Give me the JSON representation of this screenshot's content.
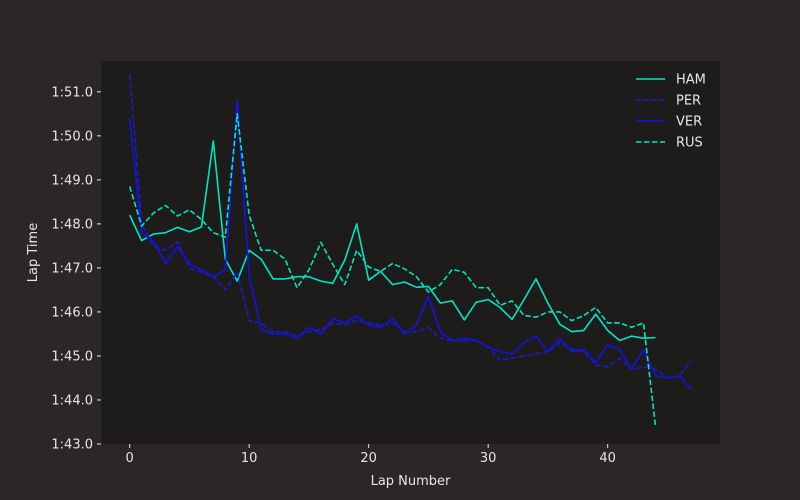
{
  "chart_data": {
    "type": "line",
    "title": "",
    "xlabel": "Lap Number",
    "ylabel": "Lap Time",
    "xlim": [
      -2.4,
      49.4
    ],
    "ylim": [
      103.0,
      111.7
    ],
    "x_ticks": [
      0,
      10,
      20,
      30,
      40
    ],
    "y_ticks": [
      {
        "value": 103,
        "label": "1:43.0"
      },
      {
        "value": 104,
        "label": "1:44.0"
      },
      {
        "value": 105,
        "label": "1:45.0"
      },
      {
        "value": 106,
        "label": "1:46.0"
      },
      {
        "value": 107,
        "label": "1:47.0"
      },
      {
        "value": 108,
        "label": "1:48.0"
      },
      {
        "value": 109,
        "label": "1:49.0"
      },
      {
        "value": 110,
        "label": "1:50.0"
      },
      {
        "value": 111,
        "label": "1:51.0"
      }
    ],
    "grid": false,
    "legend_position": "top-right",
    "colors": {
      "figure_bg": "#2b2726",
      "axes_bg": "#1e1c1b",
      "text": "#e6e6e6"
    },
    "series": [
      {
        "name": "HAM",
        "color": "#00e5c0",
        "dash": "solid",
        "x": [
          0,
          1,
          2,
          3,
          4,
          5,
          6,
          7,
          8,
          9,
          10,
          11,
          12,
          13,
          14,
          15,
          16,
          17,
          18,
          19,
          20,
          21,
          22,
          23,
          24,
          25,
          26,
          27,
          28,
          29,
          30,
          31,
          32,
          33,
          34,
          35,
          36,
          37,
          38,
          39,
          40,
          41,
          42,
          43,
          44
        ],
        "values": [
          108.2,
          107.62,
          107.77,
          107.8,
          107.92,
          107.82,
          107.93,
          109.88,
          107.2,
          106.7,
          107.4,
          107.2,
          106.75,
          106.75,
          106.8,
          106.8,
          106.7,
          106.65,
          107.18,
          108.0,
          106.72,
          106.92,
          106.62,
          106.68,
          106.56,
          106.58,
          106.2,
          106.25,
          105.82,
          106.22,
          106.28,
          106.1,
          105.83,
          106.28,
          106.75,
          106.2,
          105.72,
          105.55,
          105.58,
          105.95,
          105.58,
          105.35,
          105.45,
          105.4,
          105.42
        ]
      },
      {
        "name": "PER",
        "color": "#1a1acc",
        "dash": "dashed",
        "x": [
          0,
          1,
          2,
          3,
          4,
          5,
          6,
          7,
          8,
          9,
          10,
          11,
          12,
          13,
          14,
          15,
          16,
          17,
          18,
          19,
          20,
          21,
          22,
          23,
          24,
          25,
          26,
          27,
          28,
          29,
          30,
          31,
          32,
          33,
          34,
          35,
          36,
          37,
          38,
          39,
          40,
          41,
          42,
          43,
          44,
          45,
          46,
          47
        ],
        "values": [
          111.4,
          108.0,
          107.5,
          107.4,
          107.6,
          107.0,
          106.9,
          106.8,
          106.5,
          106.9,
          105.8,
          105.75,
          105.55,
          105.55,
          105.45,
          105.55,
          105.6,
          105.75,
          105.7,
          105.8,
          105.75,
          105.7,
          105.75,
          105.55,
          105.55,
          105.65,
          105.4,
          105.35,
          105.35,
          105.35,
          105.2,
          104.9,
          104.95,
          105.0,
          105.05,
          105.1,
          105.3,
          105.15,
          105.1,
          104.8,
          104.75,
          104.95,
          104.7,
          104.75,
          104.7,
          104.5,
          104.55,
          104.9
        ]
      },
      {
        "name": "VER",
        "color": "#1212e8",
        "dash": "solid",
        "x": [
          0,
          1,
          2,
          3,
          4,
          5,
          6,
          7,
          8,
          9,
          10,
          11,
          12,
          13,
          14,
          15,
          16,
          17,
          18,
          19,
          20,
          21,
          22,
          23,
          24,
          25,
          26,
          27,
          28,
          29,
          30,
          31,
          32,
          33,
          34,
          35,
          36,
          37,
          38,
          39,
          40,
          41,
          42,
          43,
          44,
          45,
          46,
          47
        ],
        "values": [
          110.4,
          107.8,
          107.6,
          107.1,
          107.48,
          107.1,
          106.95,
          106.8,
          106.95,
          110.8,
          106.8,
          105.6,
          105.5,
          105.5,
          105.4,
          105.65,
          105.5,
          105.85,
          105.75,
          105.9,
          105.7,
          105.65,
          105.85,
          105.5,
          105.7,
          106.35,
          105.55,
          105.35,
          105.4,
          105.35,
          105.2,
          105.1,
          105.05,
          105.3,
          105.45,
          105.1,
          105.4,
          105.1,
          105.15,
          104.85,
          105.25,
          105.15,
          104.7,
          105.15,
          104.55,
          104.5,
          104.55,
          104.25
        ]
      },
      {
        "name": "RUS",
        "color": "#00e5c0",
        "dash": "dashed",
        "x": [
          0,
          1,
          2,
          3,
          4,
          5,
          6,
          7,
          8,
          9,
          10,
          11,
          12,
          13,
          14,
          15,
          16,
          17,
          18,
          19,
          20,
          21,
          22,
          23,
          24,
          25,
          26,
          27,
          28,
          29,
          30,
          31,
          32,
          33,
          34,
          35,
          36,
          37,
          38,
          39,
          40,
          41,
          42,
          43,
          44
        ],
        "values": [
          108.85,
          107.95,
          108.25,
          108.42,
          108.18,
          108.32,
          108.1,
          107.8,
          107.7,
          110.5,
          108.2,
          107.4,
          107.4,
          107.2,
          106.55,
          106.95,
          107.58,
          107.08,
          106.62,
          107.4,
          107.02,
          106.92,
          107.1,
          106.98,
          106.8,
          106.45,
          106.62,
          106.97,
          106.9,
          106.55,
          106.55,
          106.15,
          106.25,
          105.92,
          105.88,
          106.0,
          106.0,
          105.8,
          105.92,
          106.1,
          105.75,
          105.75,
          105.65,
          105.75,
          103.4
        ]
      }
    ]
  }
}
